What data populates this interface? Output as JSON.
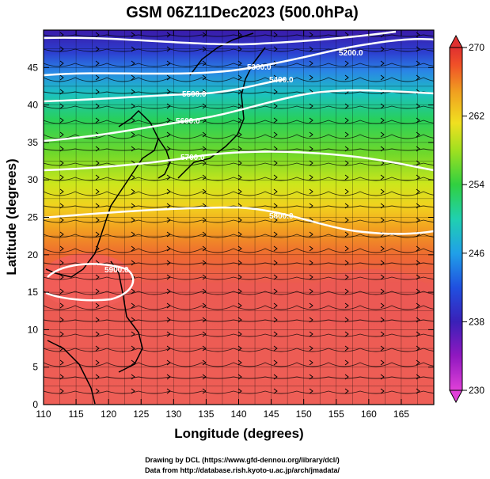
{
  "title": "GSM 06Z11Dec2023 (500.0hPa)",
  "xlabel": "Longitude (degrees)",
  "ylabel": "Latitude  (degrees)",
  "credits": [
    "Drawing by DCL (https://www.gfd-dennou.org/library/dcl/)",
    "Data from http://database.rish.kyoto-u.ac.jp/arch/jmadata/"
  ],
  "x_ticks": [
    "110",
    "115",
    "120",
    "125",
    "130",
    "135",
    "140",
    "145",
    "150",
    "155",
    "160",
    "165"
  ],
  "y_ticks": [
    "0",
    "5",
    "10",
    "15",
    "20",
    "25",
    "30",
    "35",
    "40",
    "45"
  ],
  "colorbar": {
    "unit_range": [
      230,
      270
    ],
    "tick_labels": [
      "230",
      "238",
      "246",
      "254",
      "262",
      "270"
    ],
    "colors": [
      "#e040e0",
      "#8000c0",
      "#3020c0",
      "#2070e0",
      "#20b0e0",
      "#20d0a0",
      "#30d030",
      "#90e020",
      "#f0e020",
      "#f0a020",
      "#f06020",
      "#e03030"
    ]
  },
  "map": {
    "lon_range": [
      110,
      170
    ],
    "lat_range": [
      0,
      50
    ],
    "field": "temperature shading with geopotential height contours and streamlines",
    "contours": [
      {
        "label": "5200.0",
        "value": 5200
      },
      {
        "label": "5300.0",
        "value": 5300
      },
      {
        "label": "5400.0",
        "value": 5400
      },
      {
        "label": "5500.0",
        "value": 5500
      },
      {
        "label": "5600.0",
        "value": 5600
      },
      {
        "label": "5700.0",
        "value": 5700
      },
      {
        "label": "5800.0",
        "value": 5800
      },
      {
        "label": "5900.0",
        "value": 5900
      }
    ]
  },
  "colors": {
    "warm": "#ee5a55",
    "cold": "#3a20b0",
    "contour": "#ffffff",
    "coast": "#000000"
  }
}
